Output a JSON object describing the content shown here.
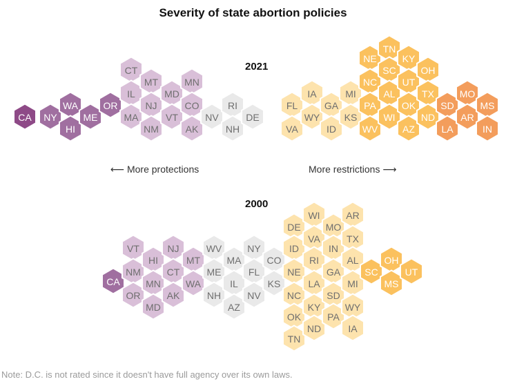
{
  "title": "Severity of state abortion policies",
  "labels": {
    "more_protections": "More protections",
    "more_restrictions": "More restrictions",
    "note": "Note: D.C. is not rated since it doesn't have full agency over its own laws."
  },
  "colors": {
    "protect_strong": "#8e4a87",
    "protect_mid": "#a06fa0",
    "protect_light": "#d9bfd8",
    "neutral": "#e9e9e9",
    "restrict_light": "#fde3ad",
    "restrict_mid": "#fbc15e",
    "restrict_strong": "#f39d5c"
  },
  "chart_data": [
    {
      "type": "hex-tile",
      "title": "2021",
      "tiers": [
        "protect_strong",
        "protect_mid",
        "protect_light",
        "neutral",
        "restrict_light",
        "restrict_mid",
        "restrict_strong"
      ],
      "states": [
        {
          "s": "CA",
          "tier": "protect_strong"
        },
        {
          "s": "NY",
          "tier": "protect_mid"
        },
        {
          "s": "WA",
          "tier": "protect_mid"
        },
        {
          "s": "HI",
          "tier": "protect_mid"
        },
        {
          "s": "ME",
          "tier": "protect_mid"
        },
        {
          "s": "OR",
          "tier": "protect_mid"
        },
        {
          "s": "CT",
          "tier": "protect_light"
        },
        {
          "s": "IL",
          "tier": "protect_light"
        },
        {
          "s": "MA",
          "tier": "protect_light"
        },
        {
          "s": "MT",
          "tier": "protect_light"
        },
        {
          "s": "NJ",
          "tier": "protect_light"
        },
        {
          "s": "NM",
          "tier": "protect_light"
        },
        {
          "s": "MD",
          "tier": "protect_light"
        },
        {
          "s": "VT",
          "tier": "protect_light"
        },
        {
          "s": "MN",
          "tier": "protect_light"
        },
        {
          "s": "CO",
          "tier": "protect_light"
        },
        {
          "s": "AK",
          "tier": "protect_light"
        },
        {
          "s": "NV",
          "tier": "neutral"
        },
        {
          "s": "RI",
          "tier": "neutral"
        },
        {
          "s": "NH",
          "tier": "neutral"
        },
        {
          "s": "DE",
          "tier": "neutral"
        },
        {
          "s": "FL",
          "tier": "restrict_light"
        },
        {
          "s": "VA",
          "tier": "restrict_light"
        },
        {
          "s": "IA",
          "tier": "restrict_light"
        },
        {
          "s": "WY",
          "tier": "restrict_light"
        },
        {
          "s": "GA",
          "tier": "restrict_light"
        },
        {
          "s": "ID",
          "tier": "restrict_light"
        },
        {
          "s": "MI",
          "tier": "restrict_light"
        },
        {
          "s": "KS",
          "tier": "restrict_light"
        },
        {
          "s": "NE",
          "tier": "restrict_mid"
        },
        {
          "s": "NC",
          "tier": "restrict_mid"
        },
        {
          "s": "PA",
          "tier": "restrict_mid"
        },
        {
          "s": "WV",
          "tier": "restrict_mid"
        },
        {
          "s": "TN",
          "tier": "restrict_mid"
        },
        {
          "s": "SC",
          "tier": "restrict_mid"
        },
        {
          "s": "AL",
          "tier": "restrict_mid"
        },
        {
          "s": "WI",
          "tier": "restrict_mid"
        },
        {
          "s": "KY",
          "tier": "restrict_mid"
        },
        {
          "s": "UT",
          "tier": "restrict_mid"
        },
        {
          "s": "OK",
          "tier": "restrict_mid"
        },
        {
          "s": "AZ",
          "tier": "restrict_mid"
        },
        {
          "s": "OH",
          "tier": "restrict_mid"
        },
        {
          "s": "TX",
          "tier": "restrict_mid"
        },
        {
          "s": "ND",
          "tier": "restrict_mid"
        },
        {
          "s": "SD",
          "tier": "restrict_strong"
        },
        {
          "s": "LA",
          "tier": "restrict_strong"
        },
        {
          "s": "MO",
          "tier": "restrict_strong"
        },
        {
          "s": "AR",
          "tier": "restrict_strong"
        },
        {
          "s": "MS",
          "tier": "restrict_strong"
        },
        {
          "s": "IN",
          "tier": "restrict_strong"
        }
      ]
    },
    {
      "type": "hex-tile",
      "title": "2000",
      "tiers": [
        "protect_strong",
        "protect_mid",
        "protect_light",
        "neutral",
        "restrict_light",
        "restrict_mid",
        "restrict_strong"
      ],
      "states": [
        {
          "s": "CA",
          "tier": "protect_mid"
        },
        {
          "s": "VT",
          "tier": "protect_light"
        },
        {
          "s": "NM",
          "tier": "protect_light"
        },
        {
          "s": "OR",
          "tier": "protect_light"
        },
        {
          "s": "HI",
          "tier": "protect_light"
        },
        {
          "s": "MN",
          "tier": "protect_light"
        },
        {
          "s": "MD",
          "tier": "protect_light"
        },
        {
          "s": "NJ",
          "tier": "protect_light"
        },
        {
          "s": "CT",
          "tier": "protect_light"
        },
        {
          "s": "AK",
          "tier": "protect_light"
        },
        {
          "s": "MT",
          "tier": "protect_light"
        },
        {
          "s": "WA",
          "tier": "protect_light"
        },
        {
          "s": "WV",
          "tier": "neutral"
        },
        {
          "s": "ME",
          "tier": "neutral"
        },
        {
          "s": "NH",
          "tier": "neutral"
        },
        {
          "s": "MA",
          "tier": "neutral"
        },
        {
          "s": "IL",
          "tier": "neutral"
        },
        {
          "s": "AZ",
          "tier": "neutral"
        },
        {
          "s": "NY",
          "tier": "neutral"
        },
        {
          "s": "FL",
          "tier": "neutral"
        },
        {
          "s": "NV",
          "tier": "neutral"
        },
        {
          "s": "CO",
          "tier": "neutral"
        },
        {
          "s": "KS",
          "tier": "neutral"
        },
        {
          "s": "DE",
          "tier": "restrict_light"
        },
        {
          "s": "ID",
          "tier": "restrict_light"
        },
        {
          "s": "NE",
          "tier": "restrict_light"
        },
        {
          "s": "NC",
          "tier": "restrict_light"
        },
        {
          "s": "OK",
          "tier": "restrict_light"
        },
        {
          "s": "TN",
          "tier": "restrict_light"
        },
        {
          "s": "WI",
          "tier": "restrict_light"
        },
        {
          "s": "VA",
          "tier": "restrict_light"
        },
        {
          "s": "RI",
          "tier": "restrict_light"
        },
        {
          "s": "LA",
          "tier": "restrict_light"
        },
        {
          "s": "KY",
          "tier": "restrict_light"
        },
        {
          "s": "ND",
          "tier": "restrict_light"
        },
        {
          "s": "MO",
          "tier": "restrict_light"
        },
        {
          "s": "IN",
          "tier": "restrict_light"
        },
        {
          "s": "GA",
          "tier": "restrict_light"
        },
        {
          "s": "SD",
          "tier": "restrict_light"
        },
        {
          "s": "PA",
          "tier": "restrict_light"
        },
        {
          "s": "AR",
          "tier": "restrict_light"
        },
        {
          "s": "TX",
          "tier": "restrict_light"
        },
        {
          "s": "AL",
          "tier": "restrict_light"
        },
        {
          "s": "MI",
          "tier": "restrict_light"
        },
        {
          "s": "WY",
          "tier": "restrict_light"
        },
        {
          "s": "IA",
          "tier": "restrict_light"
        },
        {
          "s": "SC",
          "tier": "restrict_mid"
        },
        {
          "s": "OH",
          "tier": "restrict_mid"
        },
        {
          "s": "MS",
          "tier": "restrict_mid"
        },
        {
          "s": "UT",
          "tier": "restrict_mid"
        }
      ]
    }
  ]
}
